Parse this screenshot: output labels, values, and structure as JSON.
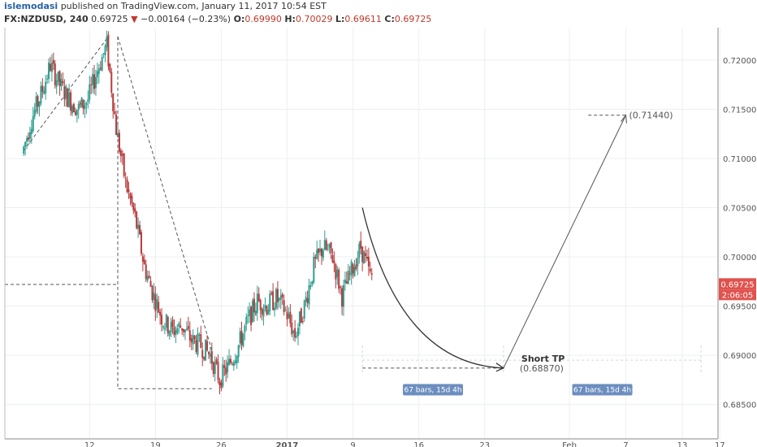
{
  "header": {
    "author": "islemodasi",
    "published_text": "published on TradingView.com, January 11, 2017 10:54 EST",
    "symbol": "FX:NZDUSD, 240",
    "last": "0.69725",
    "arrow": "▼",
    "change": "−0.00164 (−0.23%)",
    "o_label": "O:",
    "o_value": "0.69990",
    "h_label": "H:",
    "h_value": "0.70029",
    "l_label": "L:",
    "l_value": "0.69611",
    "c_label": "C:",
    "c_value": "0.69725"
  },
  "colors": {
    "up": "#2e9e8f",
    "down": "#b83a3a",
    "price_tag": "#e0524d",
    "bars_box": "#6c8ebf",
    "grid": "#eceff2",
    "axis_text": "#555555"
  },
  "chart_data": {
    "type": "candlestick",
    "y_axis": {
      "range": [
        0.6815,
        0.7233
      ],
      "ticks": [
        "0.72000",
        "0.71500",
        "0.71000",
        "0.70500",
        "0.70000",
        "0.69500",
        "0.69000",
        "0.68500"
      ],
      "tick_values": [
        0.72,
        0.715,
        0.71,
        0.705,
        0.7,
        0.695,
        0.69,
        0.685
      ]
    },
    "x_axis": {
      "ticks": [
        "12",
        "19",
        "26",
        "2017",
        "9",
        "16",
        "23",
        "Feb",
        "7",
        "13",
        "17"
      ],
      "tick_dates": [
        "2016-12-12",
        "2016-12-19",
        "2016-12-26",
        "2017-01-02",
        "2017-01-09",
        "2017-01-16",
        "2017-01-23",
        "2017-02-01",
        "2017-02-07",
        "2017-02-13",
        "2017-02-17"
      ]
    },
    "last_price_label": "0.69725",
    "countdown_label": "2:06:05",
    "ohlc_path": [
      [
        "2016-12-05",
        0.7105
      ],
      [
        "2016-12-06",
        0.714
      ],
      [
        "2016-12-07",
        0.7165
      ],
      [
        "2016-12-08",
        0.7195
      ],
      [
        "2016-12-09",
        0.7175
      ],
      [
        "2016-12-10",
        0.716
      ],
      [
        "2016-12-11",
        0.715
      ],
      [
        "2016-12-12",
        0.716
      ],
      [
        "2016-12-13",
        0.719
      ],
      [
        "2016-12-14",
        0.7215
      ],
      [
        "2016-12-15",
        0.713
      ],
      [
        "2016-12-16",
        0.7075
      ],
      [
        "2016-12-17",
        0.704
      ],
      [
        "2016-12-18",
        0.699
      ],
      [
        "2016-12-19",
        0.696
      ],
      [
        "2016-12-20",
        0.6935
      ],
      [
        "2016-12-21",
        0.6925
      ],
      [
        "2016-12-22",
        0.693
      ],
      [
        "2016-12-23",
        0.6915
      ],
      [
        "2016-12-24",
        0.691
      ],
      [
        "2016-12-25",
        0.69
      ],
      [
        "2016-12-26",
        0.6875
      ],
      [
        "2016-12-27",
        0.689
      ],
      [
        "2016-12-28",
        0.691
      ],
      [
        "2016-12-29",
        0.6935
      ],
      [
        "2016-12-30",
        0.6955
      ],
      [
        "2016-12-31",
        0.695
      ],
      [
        "2017-01-01",
        0.6958
      ],
      [
        "2017-01-02",
        0.6945
      ],
      [
        "2017-01-03",
        0.692
      ],
      [
        "2017-01-04",
        0.695
      ],
      [
        "2017-01-05",
        0.699
      ],
      [
        "2017-01-06",
        0.701
      ],
      [
        "2017-01-07",
        0.7
      ],
      [
        "2017-01-08",
        0.696
      ],
      [
        "2017-01-09",
        0.6985
      ],
      [
        "2017-01-10",
        0.701
      ],
      [
        "2017-01-11",
        0.698
      ]
    ],
    "annotations": {
      "short_tp_label": "Short TP",
      "short_tp_value": "(0.68870)",
      "target_value": "(0.71440)",
      "bars_label_1": "67 bars, 15d 4h",
      "bars_label_2": "67 bars, 15d 4h"
    }
  }
}
